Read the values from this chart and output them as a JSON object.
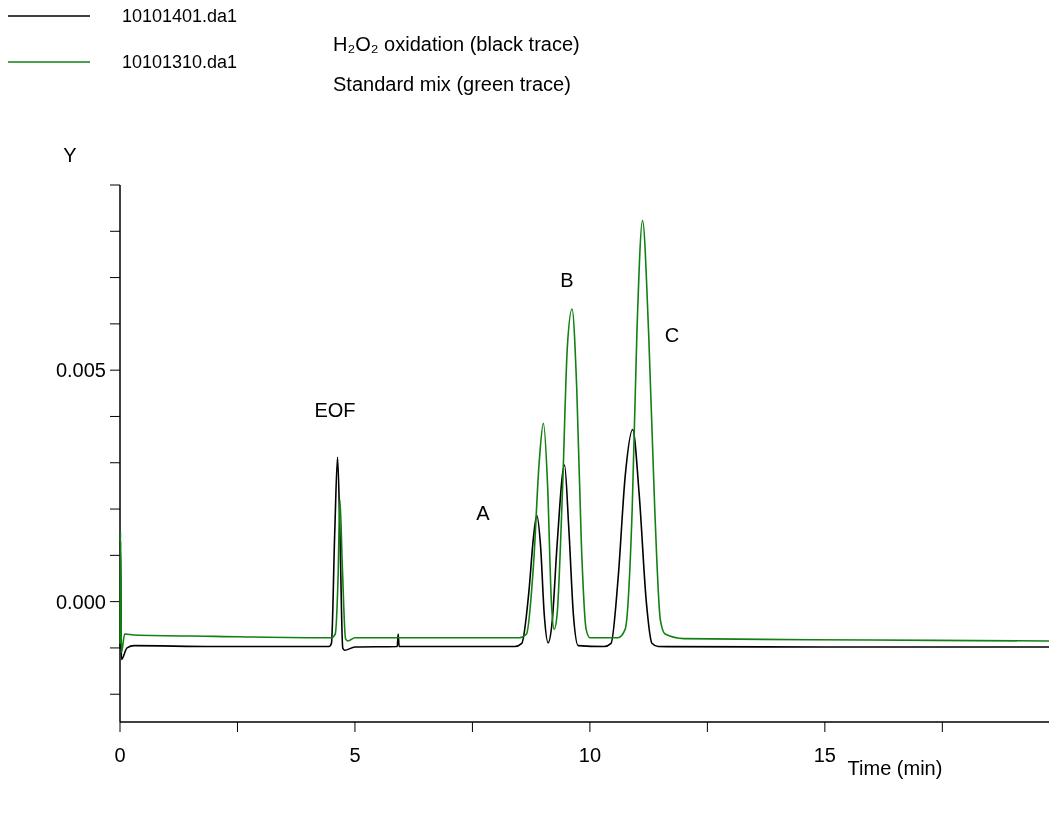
{
  "chart_data": {
    "type": "line",
    "xlabel": "Time (min)",
    "ylabel": "Y",
    "xlim": [
      0,
      19.77
    ],
    "ylim": [
      -0.0026,
      0.009
    ],
    "xticks": [
      0,
      {
        "value": 2.5,
        "label": null
      },
      5,
      {
        "value": 7.5,
        "label": null
      },
      10,
      {
        "value": 12.5,
        "label": null
      },
      15,
      {
        "value": 17.5,
        "label": null
      }
    ],
    "yticks": [
      {
        "value": -0.002,
        "label": null
      },
      {
        "value": -0.001,
        "label": null
      },
      {
        "value": 0,
        "label": "0.000"
      },
      {
        "value": 0.001,
        "label": null
      },
      {
        "value": 0.002,
        "label": null
      },
      {
        "value": 0.003,
        "label": null
      },
      {
        "value": 0.004,
        "label": null
      },
      {
        "value": 0.005,
        "label": "0.005"
      },
      {
        "value": 0.006,
        "label": null
      },
      {
        "value": 0.007,
        "label": null
      },
      {
        "value": 0.008,
        "label": null
      },
      {
        "value": 0.009,
        "label": null
      }
    ],
    "legend": "top left",
    "marker": "none",
    "line_style": "solid",
    "grid": false,
    "annotations": [
      "H₂O₂ oxidation (black trace)",
      "Standard mix (green trace)",
      "EOF",
      "A",
      "B",
      "C"
    ],
    "series": [
      {
        "name": "10101401.da1",
        "color": "#000000",
        "x": [
          0,
          0.01,
          0.03,
          0.15,
          0.3,
          2,
          4.45,
          4.5,
          4.57,
          4.63,
          4.68,
          4.74,
          4.78,
          5,
          5.9,
          5.92,
          5.94,
          8.4,
          8.55,
          8.7,
          8.8,
          8.87,
          8.95,
          9.03,
          9.11,
          9.2,
          9.3,
          9.46,
          9.55,
          9.65,
          9.75,
          10.3,
          10.45,
          10.6,
          10.75,
          10.91,
          11.05,
          11.2,
          11.32,
          11.45,
          15,
          19.77
        ],
        "values": [
          -0.001,
          0.0013,
          -0.00125,
          -0.001,
          -0.00095,
          -0.00097,
          -0.00097,
          -0.0009,
          0.0015,
          0.00312,
          0.0015,
          -0.001,
          -0.00105,
          -0.00098,
          -0.00097,
          -0.0007,
          -0.00097,
          -0.00097,
          -0.0009,
          0.0002,
          0.0014,
          0.00186,
          0.0012,
          -0.0003,
          -0.00089,
          -0.0004,
          0.0012,
          0.00295,
          0.0016,
          -0.0003,
          -0.00095,
          -0.00097,
          -0.0009,
          0.0005,
          0.0027,
          0.00372,
          0.0023,
          0,
          -0.0009,
          -0.00097,
          -0.00098,
          -0.00098
        ]
      },
      {
        "name": "10101310.da1",
        "color": "#138013",
        "x": [
          0,
          0.01,
          0.03,
          0.1,
          0.3,
          2,
          4.5,
          4.58,
          4.64,
          4.68,
          4.73,
          4.8,
          4.85,
          5,
          8.5,
          8.65,
          8.8,
          8.92,
          9.01,
          9.1,
          9.18,
          9.24,
          9.3,
          9.42,
          9.52,
          9.62,
          9.72,
          9.82,
          9.92,
          10,
          10.6,
          10.75,
          10.9,
          11,
          11.12,
          11.25,
          11.38,
          11.5,
          11.6,
          12,
          16,
          19.77
        ],
        "values": [
          -0.0009,
          0.0015,
          -0.0011,
          -0.0007,
          -0.00072,
          -0.00075,
          -0.00078,
          -0.0007,
          0.0005,
          0.0022,
          0.0008,
          -0.0008,
          -0.00085,
          -0.00078,
          -0.00078,
          -0.0007,
          0.0008,
          0.003,
          0.00385,
          0.0025,
          0,
          -0.0006,
          -0.0003,
          0.0025,
          0.0055,
          0.00632,
          0.0046,
          0.0012,
          -0.0006,
          -0.00078,
          -0.00078,
          -0.0006,
          0.002,
          0.0058,
          0.00823,
          0.0058,
          0.002,
          -0.0004,
          -0.0007,
          -0.0008,
          -0.00083,
          -0.00085
        ]
      }
    ]
  }
}
